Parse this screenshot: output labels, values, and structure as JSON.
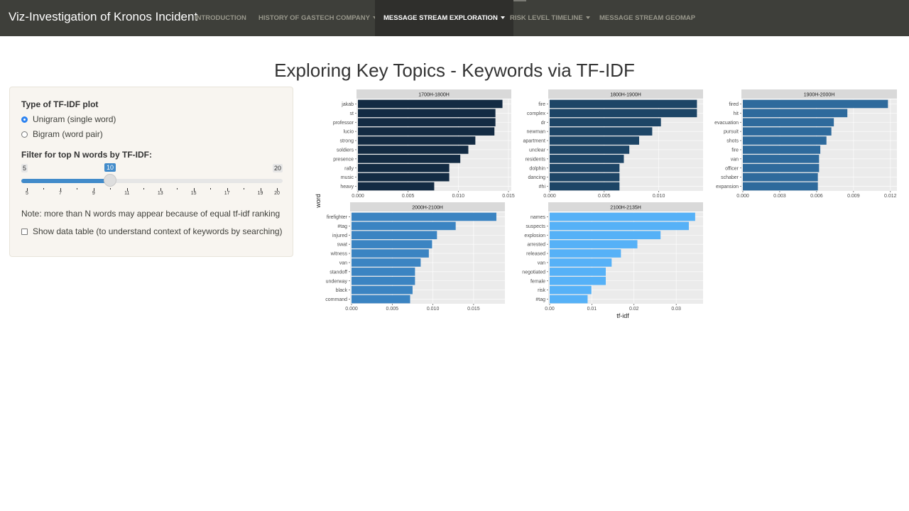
{
  "app": {
    "title": "Viz-Investigation of Kronos Incident"
  },
  "nav": {
    "items": [
      {
        "label": "INTRODUCTION",
        "dropdown": false,
        "active": false
      },
      {
        "label": "HISTORY OF GASTECH COMPANY",
        "dropdown": true,
        "active": false
      },
      {
        "label": "MESSAGE STREAM EXPLORATION",
        "dropdown": true,
        "active": true
      },
      {
        "label": "RISK LEVEL TIMELINE",
        "dropdown": true,
        "active": false
      },
      {
        "label": "MESSAGE STREAM GEOMAP",
        "dropdown": false,
        "active": false
      }
    ]
  },
  "page": {
    "title": "Exploring Key Topics - Keywords via TF-IDF"
  },
  "sidebar": {
    "plot_type_label": "Type of TF-IDF plot",
    "options": [
      {
        "label": "Unigram (single word)",
        "selected": true
      },
      {
        "label": "Bigram (word pair)",
        "selected": false
      }
    ],
    "filter_label": "Filter for top N words by TF-IDF:",
    "slider": {
      "min": "5",
      "max": "20",
      "value": "10",
      "ticks": [
        "5",
        "7",
        "9",
        "11",
        "13",
        "15",
        "17",
        "19",
        "20"
      ]
    },
    "note": "Note: more than N words may appear because of equal tf-idf ranking",
    "show_table_label": "Show data table (to understand context of keywords by searching)",
    "show_table_checked": false
  },
  "chart_data": {
    "type": "bar",
    "orientation": "horizontal",
    "xlabel": "tf-idf",
    "ylabel": "word",
    "facets": [
      {
        "title": "1700H-1800H",
        "color": "#132b43",
        "xlim": [
          0,
          0.015
        ],
        "ticks": [
          "0.000",
          "0.005",
          "0.010",
          "0.015"
        ],
        "words": [
          "jakab",
          "st",
          "professor",
          "lucio",
          "strong",
          "soldiers",
          "presence",
          "rally",
          "music",
          "heavy"
        ],
        "values": [
          0.0144,
          0.0137,
          0.0137,
          0.0136,
          0.0117,
          0.011,
          0.0102,
          0.0091,
          0.0091,
          0.0076
        ]
      },
      {
        "title": "1800H-1900H",
        "color": "#1d4566",
        "xlim": [
          0,
          0.0138
        ],
        "ticks": [
          "0.000",
          "0.005",
          "0.010"
        ],
        "words": [
          "fire",
          "complex",
          "dr",
          "newman",
          "apartment",
          "unclear",
          "residents",
          "dolphin",
          "dancing",
          "#hi"
        ],
        "values": [
          0.0135,
          0.0135,
          0.0102,
          0.0094,
          0.0082,
          0.0073,
          0.0068,
          0.0064,
          0.0064,
          0.0064
        ]
      },
      {
        "title": "1900H-2000H",
        "color": "#2e6a9c",
        "xlim": [
          0,
          0.0123
        ],
        "ticks": [
          "0.000",
          "0.003",
          "0.006",
          "0.009",
          "0.012"
        ],
        "words": [
          "fired",
          "hit",
          "evacuation",
          "pursuit",
          "shots",
          "fire",
          "van",
          "officer",
          "schaber",
          "expansion"
        ],
        "values": [
          0.0118,
          0.0085,
          0.0074,
          0.0072,
          0.0068,
          0.0063,
          0.0062,
          0.0062,
          0.0061,
          0.0061
        ]
      },
      {
        "title": "2000H-2100H",
        "color": "#3b84c2",
        "xlim": [
          0,
          0.0185
        ],
        "ticks": [
          "0.000",
          "0.005",
          "0.010",
          "0.015"
        ],
        "words": [
          "firefighter",
          "#tag",
          "injured",
          "swat",
          "witness",
          "van",
          "standoff",
          "underway",
          "black",
          "command"
        ],
        "values": [
          0.0178,
          0.0128,
          0.0105,
          0.0099,
          0.0095,
          0.0085,
          0.0078,
          0.0078,
          0.0075,
          0.0072
        ]
      },
      {
        "title": "2100H-2135H",
        "color": "#56b1f7",
        "xlim": [
          0,
          0.0357
        ],
        "ticks": [
          "0.00",
          "0.01",
          "0.02",
          "0.03"
        ],
        "words": [
          "names",
          "suspects",
          "explosion",
          "arrested",
          "released",
          "van",
          "negotiated",
          "female",
          "risk",
          "#tag"
        ],
        "values": [
          0.0345,
          0.033,
          0.0263,
          0.0208,
          0.0169,
          0.0147,
          0.0133,
          0.0133,
          0.0099,
          0.009
        ]
      }
    ]
  }
}
